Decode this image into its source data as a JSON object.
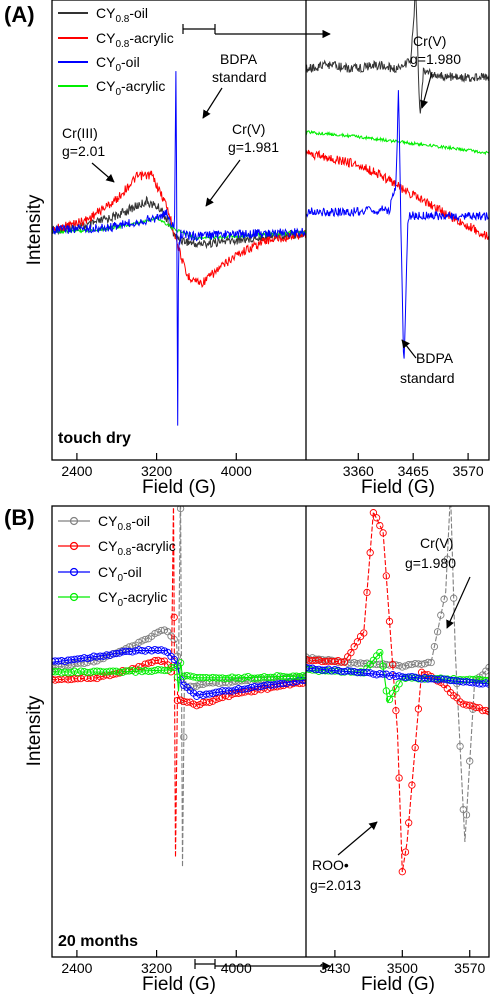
{
  "chart_data": [
    {
      "panel": "(A)",
      "type": "line",
      "stage_label": "touch dry",
      "ylabel": "Intensity",
      "legend": [
        {
          "prefix": "CY",
          "sub": "0.8",
          "suffix": "-oil",
          "color": "#333333"
        },
        {
          "prefix": "CY",
          "sub": "0.8",
          "suffix": "-acrylic",
          "color": "#ff0000"
        },
        {
          "prefix": "CY",
          "sub": "0",
          "suffix": "-oil",
          "color": "#0000ff"
        },
        {
          "prefix": "CY",
          "sub": "0",
          "suffix": "-acrylic",
          "color": "#00ee00"
        }
      ],
      "left": {
        "xlabel": "Field (G)",
        "xlim": [
          2150,
          4700
        ],
        "xticks": [
          2400,
          3200,
          4000
        ],
        "series": [
          {
            "color": "#333333",
            "x": [
              2150,
              2500,
              2800,
              3100,
              3250,
              3400,
              3600,
              3800,
              4000,
              4300,
              4700
            ],
            "y": [
              0.0,
              0.02,
              0.07,
              0.14,
              0.1,
              -0.04,
              -0.07,
              -0.06,
              -0.05,
              -0.03,
              -0.02
            ]
          },
          {
            "color": "#ff0000",
            "x": [
              2150,
              2500,
              2800,
              3000,
              3150,
              3300,
              3400,
              3500,
              3650,
              3800,
              4000,
              4300,
              4700
            ],
            "y": [
              0.0,
              0.05,
              0.15,
              0.26,
              0.27,
              0.12,
              -0.05,
              -0.22,
              -0.26,
              -0.2,
              -0.12,
              -0.05,
              -0.02
            ]
          },
          {
            "color": "#00ee00",
            "x": [
              2150,
              2600,
              3000,
              3200,
              3400,
              3600,
              4000,
              4700
            ],
            "y": [
              -0.01,
              0.0,
              0.03,
              0.06,
              0.0,
              -0.04,
              -0.03,
              -0.01
            ]
          },
          {
            "color": "#0000ff",
            "x": [
              2150,
              2700,
              3000,
              3200,
              3300,
              3380,
              3395,
              3405,
              3412,
              3420,
              3440,
              3600,
              4000,
              4700
            ],
            "y": [
              0.0,
              0.01,
              0.04,
              0.06,
              0.08,
              0.0,
              0.85,
              -0.2,
              -1.0,
              -0.1,
              -0.02,
              -0.03,
              -0.02,
              -0.01
            ]
          }
        ],
        "annotations": [
          {
            "lines": [
              "Cr(III)",
              "g=2.01"
            ]
          },
          {
            "lines": [
              "BDPA",
              "standard"
            ]
          },
          {
            "lines": [
              "Cr(V)",
              "g=1.981"
            ]
          }
        ]
      },
      "right": {
        "xlabel": "Field (G)",
        "xlim": [
          3260,
          3610
        ],
        "xticks": [
          3360,
          3465,
          3570
        ],
        "series": [
          {
            "color": "#333333",
            "x": [
              3260,
              3300,
              3350,
              3400,
              3430,
              3460,
              3470,
              3478,
              3485,
              3500,
              3550,
              3610
            ],
            "y": [
              0.6,
              0.62,
              0.6,
              0.62,
              0.6,
              0.64,
              0.98,
              0.36,
              0.6,
              0.57,
              0.56,
              0.56
            ]
          },
          {
            "color": "#00ee00",
            "x": [
              3260,
              3350,
              3450,
              3550,
              3610
            ],
            "y": [
              0.3,
              0.28,
              0.25,
              0.22,
              0.2
            ]
          },
          {
            "color": "#ff0000",
            "x": [
              3260,
              3300,
              3350,
              3400,
              3450,
              3500,
              3550,
              3610
            ],
            "y": [
              0.2,
              0.18,
              0.15,
              0.1,
              0.02,
              -0.05,
              -0.12,
              -0.2
            ]
          },
          {
            "color": "#0000ff",
            "x": [
              3260,
              3350,
              3420,
              3432,
              3437,
              3442,
              3447,
              3455,
              3500,
              3610
            ],
            "y": [
              -0.08,
              -0.08,
              -0.07,
              0.05,
              0.5,
              -0.2,
              -0.85,
              -0.1,
              -0.1,
              -0.1
            ]
          }
        ],
        "annotations": [
          {
            "lines": [
              "Cr(V)",
              "g=1.980"
            ]
          },
          {
            "lines": [
              "BDPA",
              "standard"
            ]
          }
        ]
      }
    },
    {
      "panel": "(B)",
      "type": "line",
      "stage_label": "20 months",
      "ylabel": "Intensity",
      "legend": [
        {
          "prefix": "CY",
          "sub": "0.8",
          "suffix": "-oil",
          "color": "#808080"
        },
        {
          "prefix": "CY",
          "sub": "0.8",
          "suffix": "-acrylic",
          "color": "#ff0000"
        },
        {
          "prefix": "CY",
          "sub": "0",
          "suffix": "-oil",
          "color": "#0000ff"
        },
        {
          "prefix": "CY",
          "sub": "0",
          "suffix": "-acrylic",
          "color": "#00ee00"
        }
      ],
      "left": {
        "xlabel": "Field (G)",
        "xlim": [
          2150,
          4700
        ],
        "xticks": [
          2400,
          3200,
          4000
        ],
        "series": [
          {
            "color": "#808080",
            "x": [
              2150,
              2600,
              3000,
              3200,
              3300,
              3400,
              3420,
              3440,
              3460,
              3480,
              3500,
              3700,
              4000,
              4700
            ],
            "y": [
              0.02,
              0.06,
              0.14,
              0.2,
              0.22,
              0.15,
              0.0,
              0.95,
              -1.0,
              0.0,
              -0.08,
              -0.06,
              -0.05,
              -0.03
            ]
          },
          {
            "color": "#ff0000",
            "x": [
              2150,
              2600,
              3000,
              3200,
              3300,
              3350,
              3370,
              3390,
              3410,
              3430,
              3600,
              4000,
              4700
            ],
            "y": [
              -0.04,
              -0.03,
              0.02,
              0.06,
              0.05,
              0.0,
              0.88,
              -0.95,
              -0.1,
              -0.14,
              -0.17,
              -0.11,
              -0.05
            ]
          },
          {
            "color": "#0000ff",
            "x": [
              2150,
              2600,
              3000,
              3300,
              3400,
              3450,
              3600,
              4000,
              4700
            ],
            "y": [
              0.05,
              0.08,
              0.11,
              0.11,
              0.05,
              -0.06,
              -0.12,
              -0.09,
              -0.04
            ]
          },
          {
            "color": "#00ee00",
            "x": [
              2150,
              2800,
              3300,
              3400,
              3420,
              3440,
              3460,
              3600,
              4000,
              4700
            ],
            "y": [
              0.0,
              0.0,
              0.01,
              0.03,
              -0.1,
              0.05,
              -0.02,
              -0.03,
              -0.03,
              -0.02
            ]
          }
        ]
      },
      "right": {
        "xlabel": "Field (G)",
        "xlim": [
          3400,
          3590
        ],
        "xticks": [
          3430,
          3500,
          3570
        ],
        "series": [
          {
            "color": "#808080",
            "x": [
              3400,
              3440,
              3500,
              3530,
              3545,
              3550,
              3555,
              3565,
              3575,
              3590
            ],
            "y": [
              0.07,
              0.05,
              0.03,
              0.05,
              0.4,
              0.9,
              0.1,
              -0.85,
              -0.05,
              0.02
            ]
          },
          {
            "color": "#ff0000",
            "x": [
              3400,
              3440,
              3460,
              3470,
              3480,
              3495,
              3500,
              3505,
              3520,
              3540,
              3560,
              3590
            ],
            "y": [
              0.06,
              0.05,
              0.2,
              0.8,
              0.7,
              -0.3,
              -1.0,
              -0.85,
              0.0,
              -0.05,
              -0.15,
              -0.2
            ]
          },
          {
            "color": "#00ee00",
            "x": [
              3400,
              3460,
              3472,
              3478,
              3485,
              3500,
              3590
            ],
            "y": [
              0.01,
              0.0,
              0.07,
              0.1,
              -0.15,
              -0.03,
              -0.04
            ]
          },
          {
            "color": "#0000ff",
            "x": [
              3400,
              3590
            ],
            "y": [
              0.02,
              -0.06
            ]
          }
        ],
        "annotations": [
          {
            "lines": [
              "Cr(V)",
              "g=1.980"
            ]
          },
          {
            "lines": [
              "ROO•",
              "g=2.013"
            ]
          }
        ]
      }
    }
  ]
}
